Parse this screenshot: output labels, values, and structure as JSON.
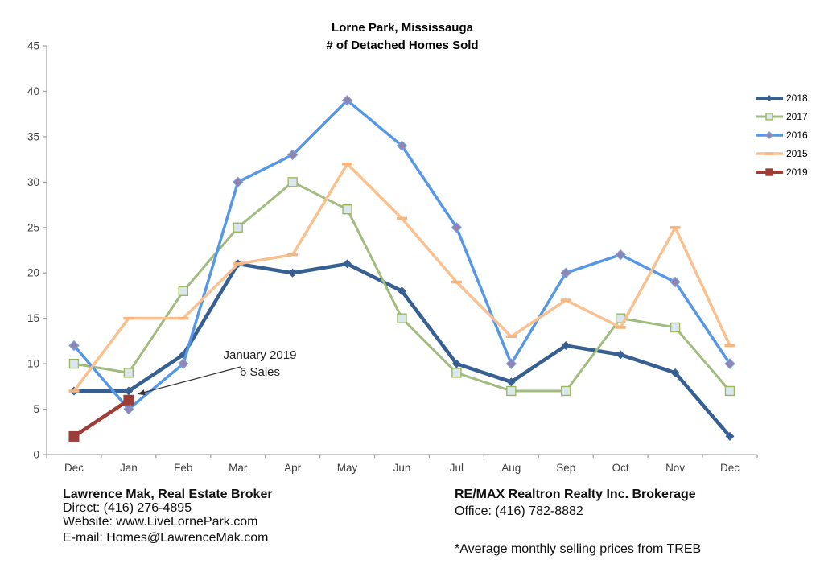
{
  "title": {
    "line1": "Lorne Park, Mississauga",
    "line2": "# of Detached Homes Sold"
  },
  "chart_data": {
    "type": "line",
    "categories": [
      "Dec",
      "Jan",
      "Feb",
      "Mar",
      "Apr",
      "May",
      "Jun",
      "Jul",
      "Aug",
      "Sep",
      "Oct",
      "Nov",
      "Dec"
    ],
    "y_ticks": [
      0,
      5,
      10,
      15,
      20,
      25,
      30,
      35,
      40,
      45
    ],
    "ylim": [
      0,
      45
    ],
    "grid": false,
    "legend_position": "right",
    "axis_color": "#a6a6a6",
    "label_color": "#3f3f3f",
    "series": [
      {
        "name": "2018",
        "color": "#376092",
        "marker": "diamond",
        "marker_fill": "#376092",
        "marker_size": 5.5,
        "line_width": 4.5,
        "values": [
          7,
          7,
          11,
          21,
          20,
          21,
          18,
          10,
          8,
          12,
          11,
          9,
          2
        ]
      },
      {
        "name": "2017",
        "color": "#a0bc7f",
        "marker": "square",
        "marker_fill": "#dce6f1",
        "marker_stroke": "#9bbb59",
        "marker_size": 5.5,
        "line_width": 3,
        "values": [
          10,
          9,
          18,
          25,
          30,
          27,
          15,
          9,
          7,
          7,
          15,
          14,
          7
        ]
      },
      {
        "name": "2016",
        "color": "#5697e6",
        "marker": "diamond",
        "marker_fill": "#8f85b5",
        "marker_stroke": "#7da4d9",
        "marker_size": 6,
        "line_width": 3.5,
        "values": [
          12,
          5,
          10,
          30,
          33,
          39,
          34,
          25,
          10,
          20,
          22,
          19,
          10
        ]
      },
      {
        "name": "2015",
        "color": "#fac090",
        "marker": "dash",
        "marker_fill": "#f8b57e",
        "marker_size": 6.5,
        "line_width": 3.5,
        "values": [
          7,
          15,
          15,
          21,
          22,
          32,
          26,
          19,
          13,
          17,
          14,
          25,
          12
        ]
      },
      {
        "name": "2019",
        "color": "#9e3d36",
        "marker": "square",
        "marker_fill": "#9e3d36",
        "marker_size": 6.5,
        "line_width": 4.5,
        "values": [
          2,
          6,
          null,
          null,
          null,
          null,
          null,
          null,
          null,
          null,
          null,
          null,
          null
        ]
      }
    ],
    "annotation": {
      "line1": "January 2019",
      "line2": "6 Sales"
    }
  },
  "footer": {
    "left": {
      "title": "Lawrence Mak, Real Estate Broker",
      "line1": "Direct:  (416) 276-4895",
      "line2": "Website:  www.LiveLornePark.com",
      "line3": "E-mail:  Homes@LawrenceMak.com"
    },
    "right": {
      "title": "RE/MAX Realtron Realty Inc. Brokerage",
      "line1": "Office: (416) 782-8882",
      "note": "*Average monthly selling prices from TREB"
    }
  }
}
